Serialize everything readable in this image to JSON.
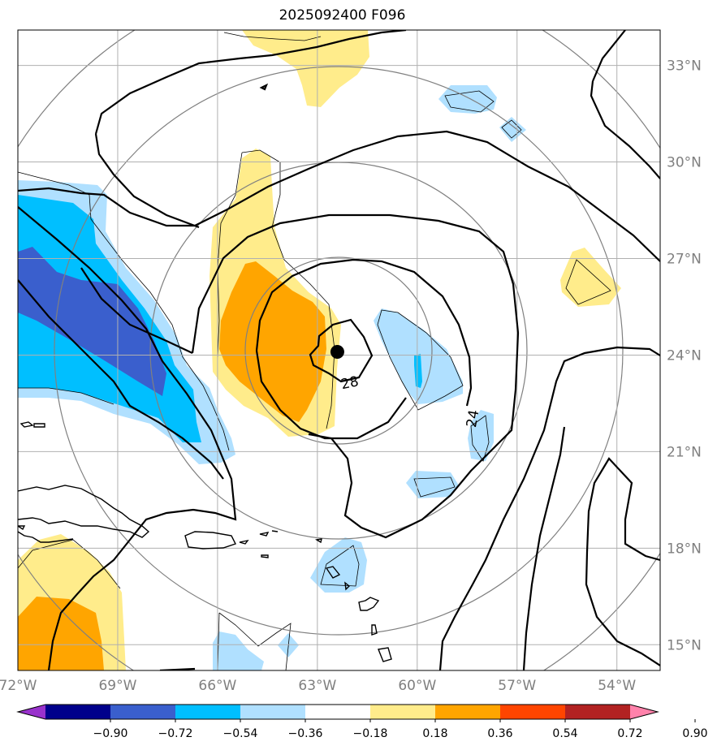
{
  "title": "2025092400 F096",
  "map": {
    "lon_range": [
      -72.0,
      -52.7
    ],
    "lat_range": [
      14.2,
      34.1
    ],
    "lon_ticks": [
      {
        "value": -72,
        "label": "72°W"
      },
      {
        "value": -69,
        "label": "69°W"
      },
      {
        "value": -66,
        "label": "66°W"
      },
      {
        "value": -63,
        "label": "63°W"
      },
      {
        "value": -60,
        "label": "60°W"
      },
      {
        "value": -57,
        "label": "57°W"
      },
      {
        "value": -54,
        "label": "54°W"
      }
    ],
    "lat_ticks": [
      {
        "value": 15,
        "label": "15°N"
      },
      {
        "value": 18,
        "label": "18°N"
      },
      {
        "value": 21,
        "label": "21°N"
      },
      {
        "value": 24,
        "label": "24°N"
      },
      {
        "value": 27,
        "label": "27°N"
      },
      {
        "value": 30,
        "label": "30°N"
      },
      {
        "value": 33,
        "label": "33°N"
      }
    ],
    "storm_center": {
      "lon": -62.4,
      "lat": 24.1
    },
    "contour_labels": [
      {
        "text": "28",
        "lon": -62.0,
        "lat": 23.0
      },
      {
        "text": "24",
        "lon": -58.2,
        "lat": 22.0
      }
    ],
    "colors": {
      "grid": "#b0b0b0",
      "range_rings": "#808080",
      "contours": "#000000",
      "tick_labels": "#7f7f7f"
    }
  },
  "colorbar": {
    "colors": [
      "#9932cc",
      "#00008b",
      "#3a5fcd",
      "#00bfff",
      "#b0e0ff",
      "#ffffff",
      "#ffec8b",
      "#ffa500",
      "#ff4500",
      "#b22222",
      "#ff82ab"
    ],
    "labels": [
      "−0.90",
      "−0.72",
      "−0.54",
      "−0.36",
      "−0.18",
      "0.18",
      "0.36",
      "0.54",
      "0.72",
      "0.90"
    ]
  }
}
